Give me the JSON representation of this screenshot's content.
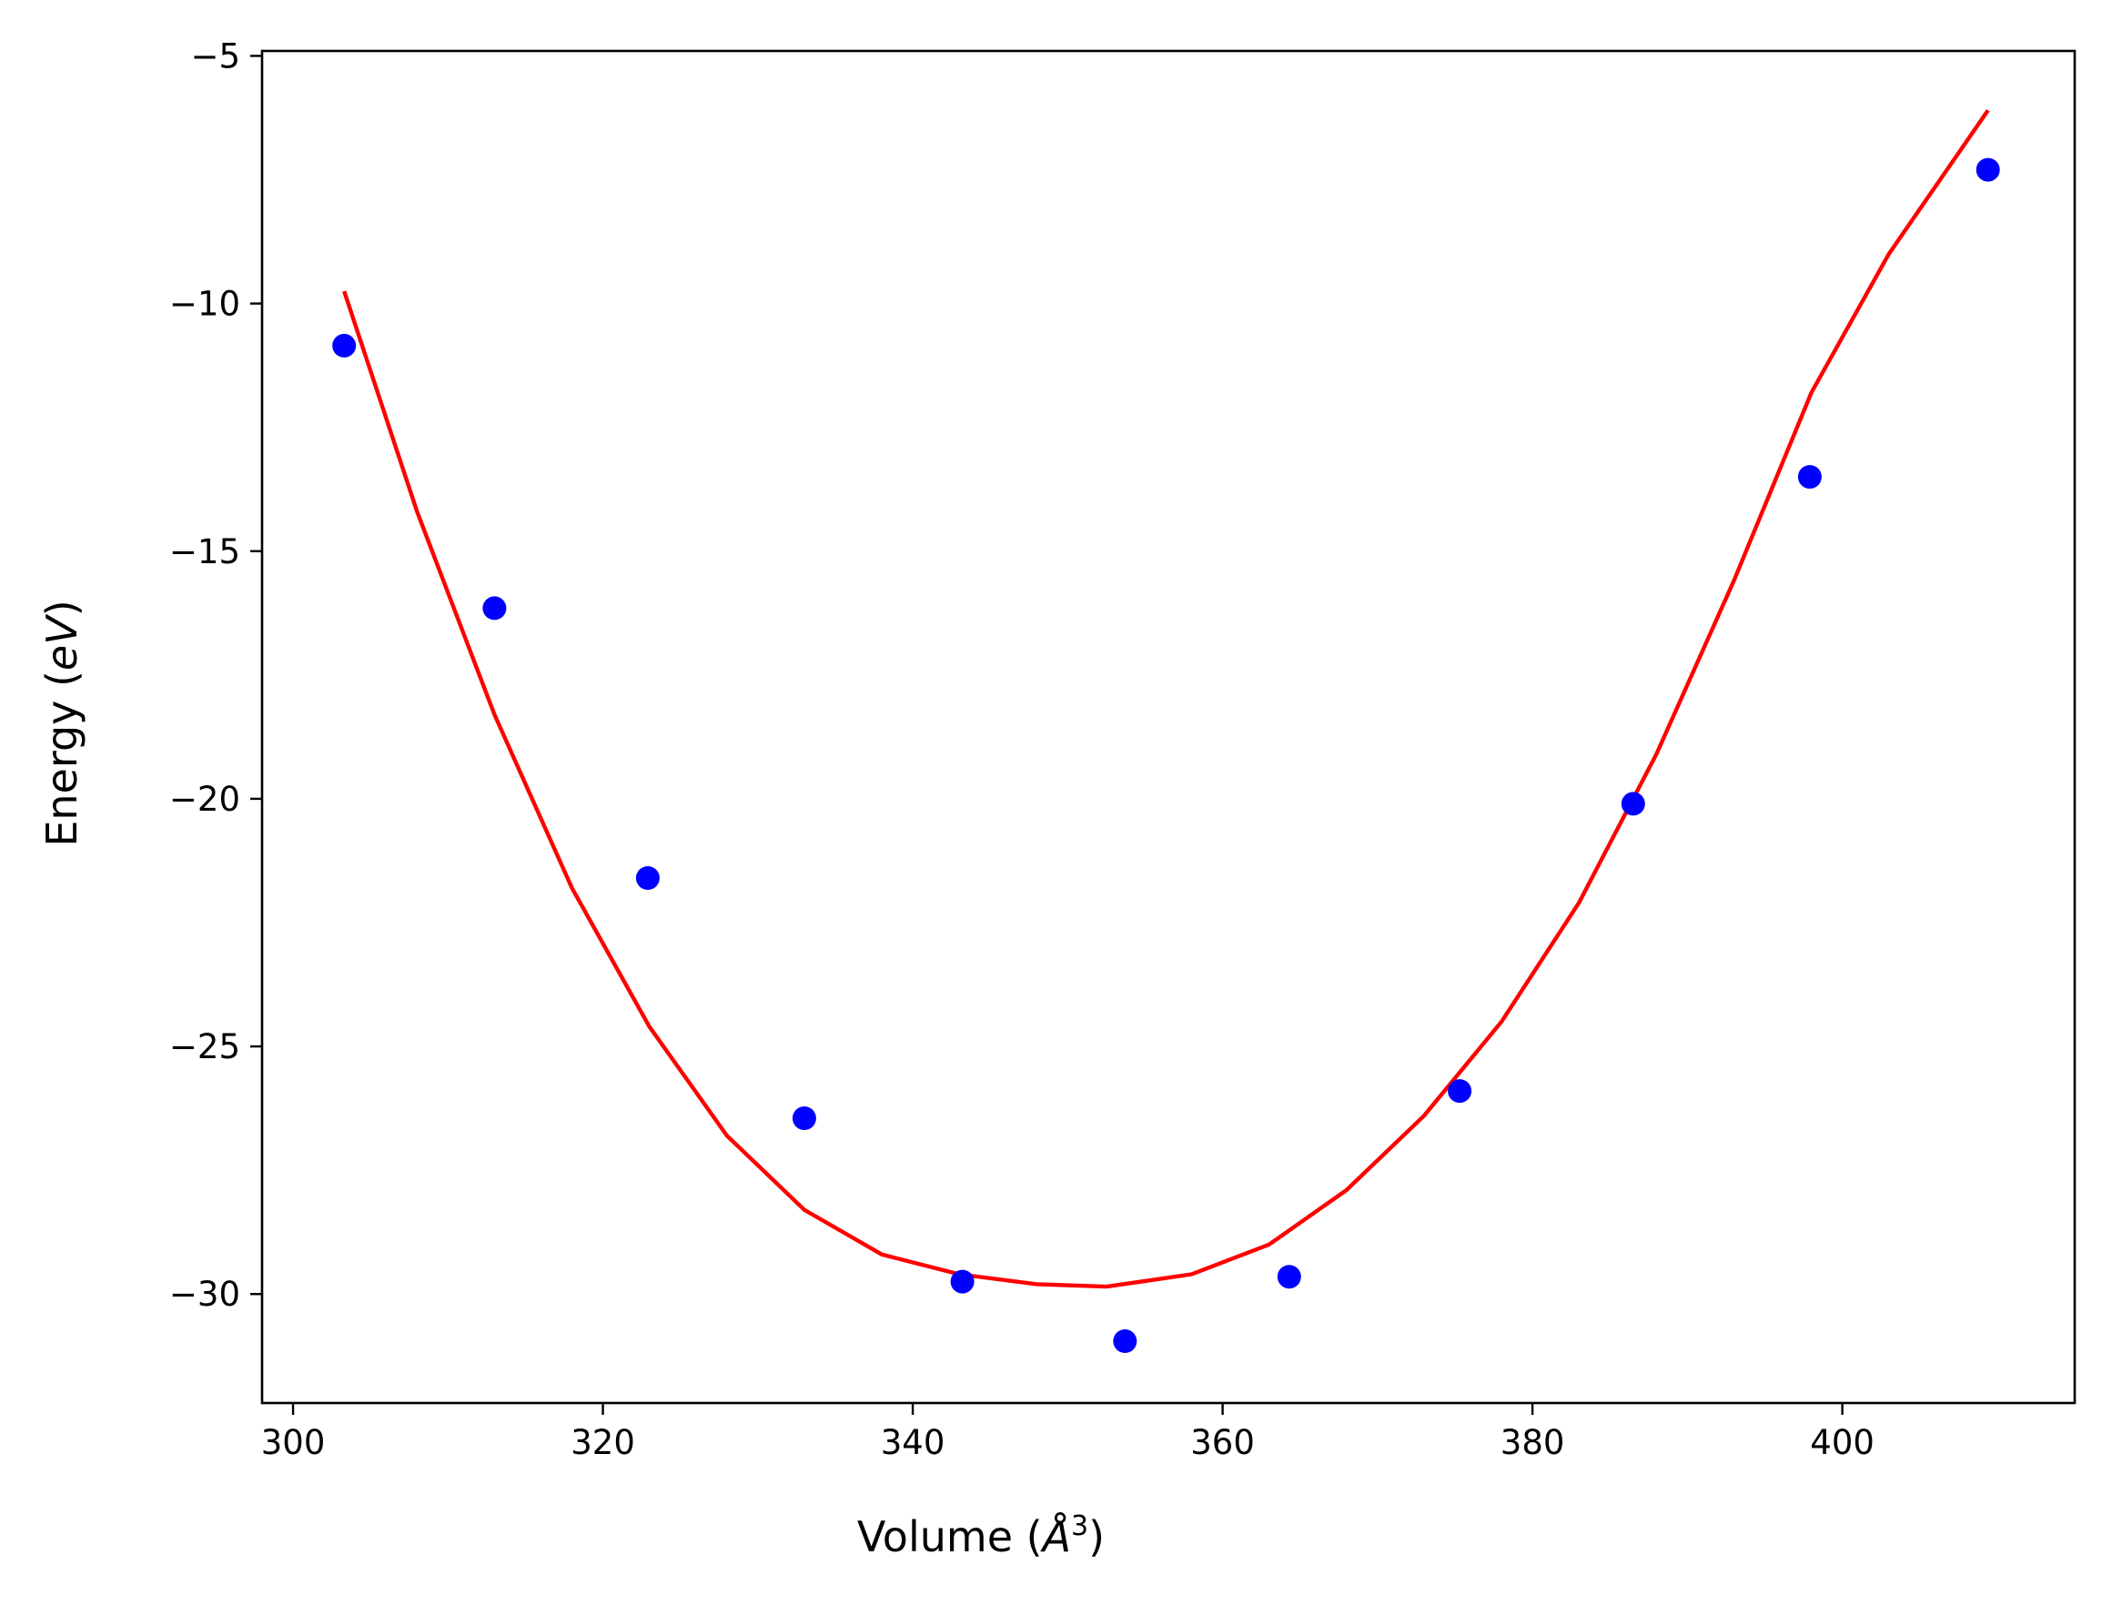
{
  "chart_data": {
    "type": "scatter",
    "title": "",
    "xlabel": "Volume (",
    "xlabel_symbol": "Å",
    "xlabel_sup": "3",
    "xlabel_end": ")",
    "ylabel": "Energy (",
    "ylabel_symbol": "eV",
    "ylabel_end": ")",
    "xlim": [
      298,
      415
    ],
    "ylim": [
      -32.2,
      -4.9
    ],
    "xticks": [
      300,
      320,
      340,
      360,
      380,
      400
    ],
    "xtick_labels": [
      "300",
      "320",
      "340",
      "360",
      "380",
      "400"
    ],
    "yticks": [
      -30,
      -25,
      -20,
      -15,
      -10,
      -5
    ],
    "ytick_labels": [
      "−30",
      "−25",
      "−20",
      "−15",
      "−10",
      "−5"
    ],
    "grid": false,
    "legend": "none",
    "series": [
      {
        "kind": "points",
        "color": "#0000ff",
        "x": [
          303.3,
          313.0,
          322.9,
          333.0,
          343.2,
          353.7,
          364.3,
          375.3,
          386.5,
          397.9,
          409.4
        ],
        "y": [
          -10.85,
          -16.15,
          -21.6,
          -26.45,
          -29.75,
          -30.95,
          -29.65,
          -25.9,
          -20.1,
          -13.5,
          -7.3
        ]
      },
      {
        "kind": "line",
        "color": "#ff0000",
        "x": [
          303.3,
          308,
          313,
          318,
          323,
          328,
          333,
          338,
          343,
          348,
          352.5,
          358,
          363,
          368,
          373,
          378,
          383,
          388,
          393,
          398,
          403,
          409.4
        ],
        "y": [
          -9.75,
          -14.2,
          -18.3,
          -21.8,
          -24.6,
          -26.8,
          -28.3,
          -29.2,
          -29.6,
          -29.8,
          -29.85,
          -29.6,
          -29.0,
          -27.9,
          -26.4,
          -24.5,
          -22.1,
          -19.1,
          -15.6,
          -11.8,
          -9.0,
          -6.1
        ]
      }
    ]
  }
}
